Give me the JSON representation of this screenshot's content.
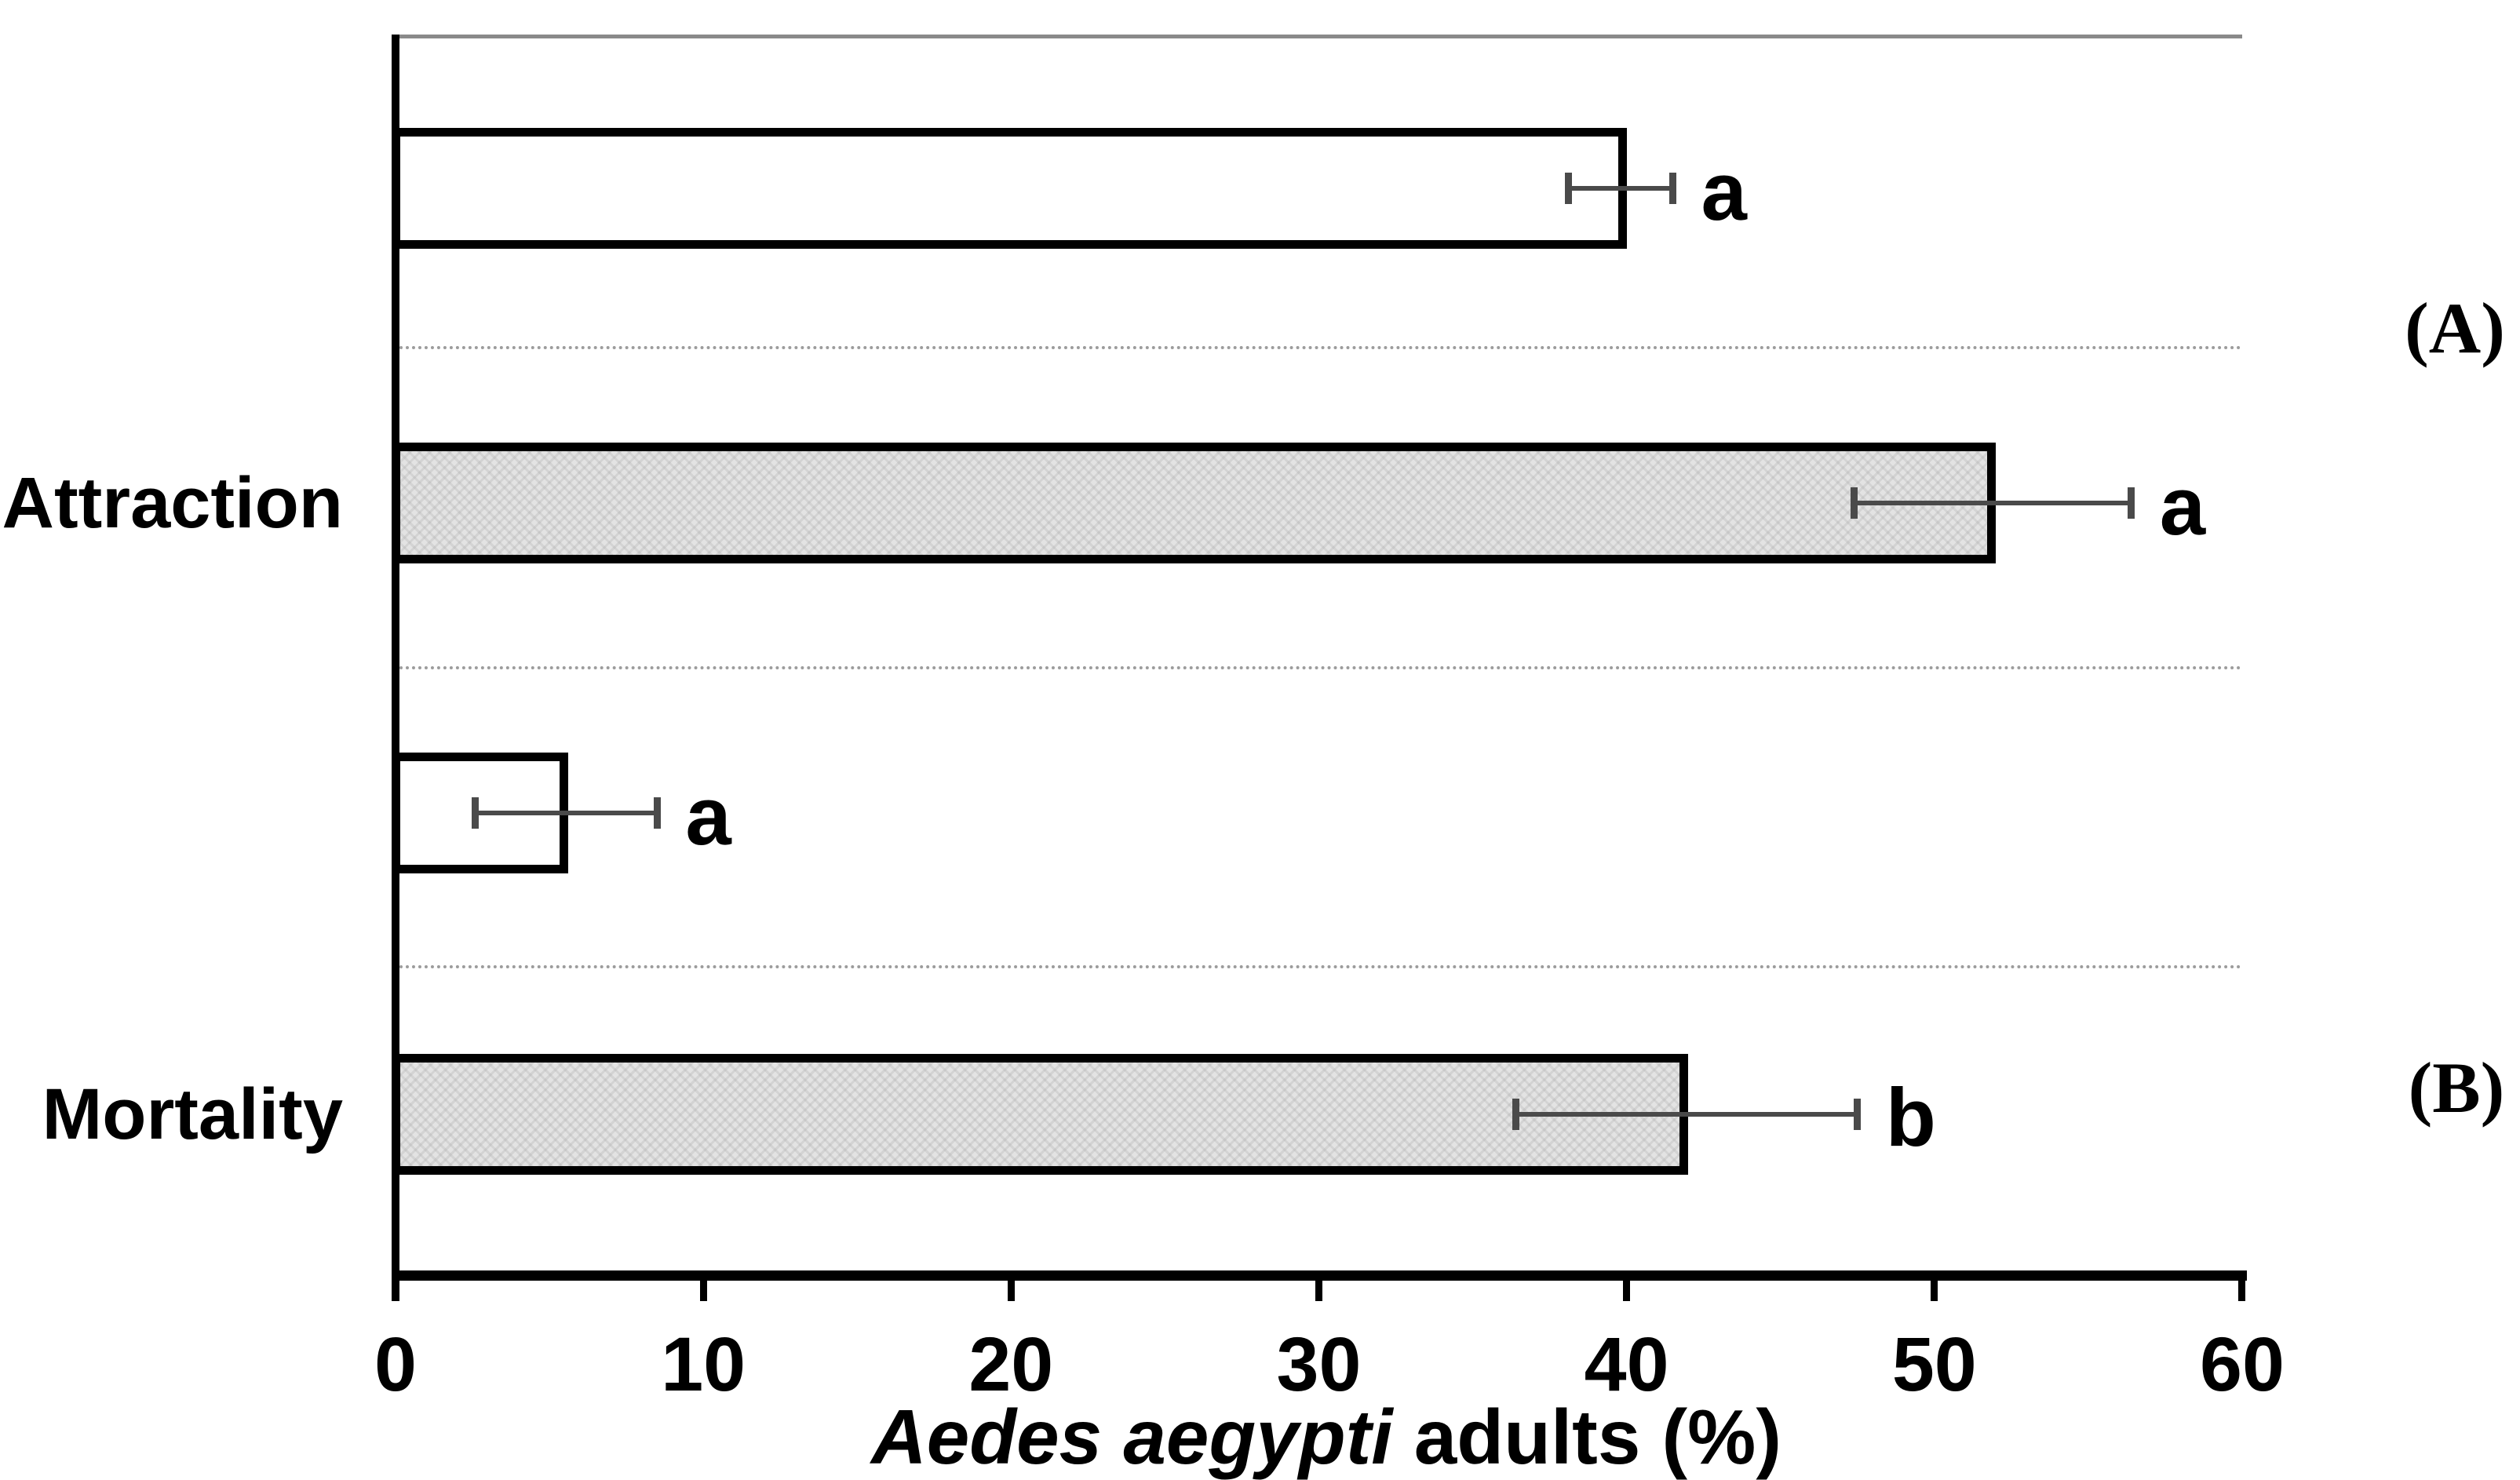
{
  "figure": {
    "panel_a_label": "(A)",
    "panel_b_label": "(B)"
  },
  "axes": {
    "x_title_species": "Aedes aegypti",
    "x_title_rest": " adults (%)",
    "x_ticks": [
      0,
      10,
      20,
      30,
      40,
      50,
      60
    ],
    "y_labels": [
      "Attraction",
      "Mortality"
    ]
  },
  "style": {
    "bar_white_fill": "#ffffff",
    "bar_gray_fill": "#e3e3e3",
    "bar_border_color": "#000000",
    "error_bar_color": "#4a4a4a",
    "gridline_color": "#9c9c9c",
    "top_frame_color": "#8a8a8a"
  },
  "chart_data": {
    "type": "bar",
    "orientation": "horizontal",
    "title": "",
    "xlabel": "Aedes aegypti adults (%)",
    "ylabel": "",
    "xlim": [
      0,
      60
    ],
    "xticks": [
      0,
      10,
      20,
      30,
      40,
      50,
      60
    ],
    "grid": "category separators (dotted)",
    "legend": "none",
    "categories": [
      "Attraction",
      "Mortality"
    ],
    "panel_labels": [
      "(A)",
      "(B)"
    ],
    "bars": [
      {
        "category": "Attraction",
        "fill": "white",
        "value": 40.0,
        "err_low": 38.1,
        "err_high": 41.5,
        "letter": "a"
      },
      {
        "category": "Attraction",
        "fill": "gray",
        "value": 52.0,
        "err_low": 47.4,
        "err_high": 56.4,
        "letter": "a"
      },
      {
        "category": "Mortality",
        "fill": "white",
        "value": 5.6,
        "err_low": 2.6,
        "err_high": 8.5,
        "letter": "a"
      },
      {
        "category": "Mortality",
        "fill": "gray",
        "value": 42.0,
        "err_low": 36.4,
        "err_high": 47.5,
        "letter": "b"
      }
    ]
  }
}
